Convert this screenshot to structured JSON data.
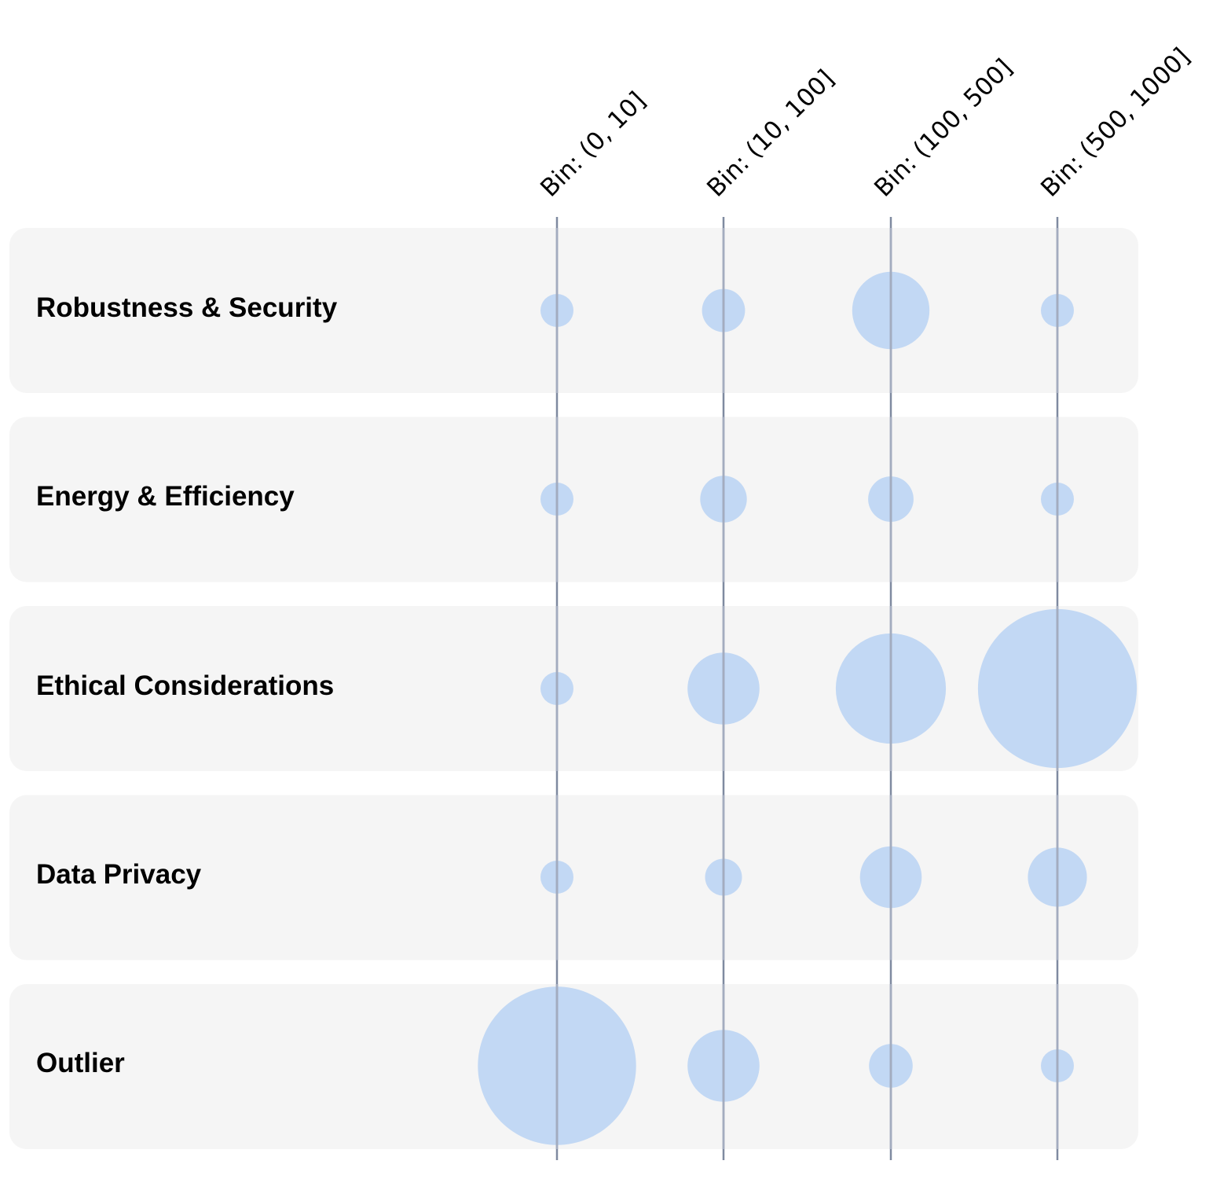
{
  "chart_data": {
    "type": "scatter",
    "encoding": "bubble matrix — circle area shows relative size",
    "columns": [
      "Bin: (0, 10]",
      "Bin: (10, 100]",
      "Bin: (100, 500]",
      "Bin: (500, 1000]"
    ],
    "rows": [
      "Robustness & Security",
      "Energy & Efficiency",
      "Ethical Considerations",
      "Data Privacy",
      "Outlier"
    ],
    "values": [
      [
        1.0,
        1.7,
        5.5,
        1.0
      ],
      [
        1.0,
        2.0,
        1.9,
        1.0
      ],
      [
        1.0,
        4.75,
        11.15,
        23.2
      ],
      [
        1.0,
        1.25,
        3.5,
        3.2
      ],
      [
        23.0,
        4.75,
        1.75,
        1.0
      ]
    ],
    "colors": {
      "bubble": "#c2d8f4",
      "panel": "#f5f5f5",
      "gridline": "#a3acbf",
      "gridline_outside": "#7f8aa0"
    }
  }
}
